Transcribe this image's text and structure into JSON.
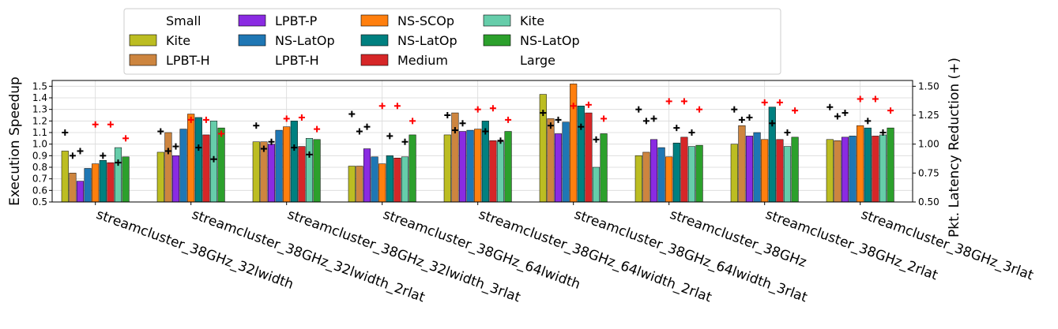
{
  "chart_data": {
    "type": "bar",
    "ylabel_left": "Execution Speedup",
    "ylabel_right": "Pkt. Latency Reduction (+)",
    "ylim_left": [
      0.5,
      1.55
    ],
    "yticks_left": [
      "0.5",
      "0.6",
      "0.7",
      "0.8",
      "0.9",
      "1.0",
      "1.1",
      "1.2",
      "1.3",
      "1.4",
      "1.5"
    ],
    "ylim_right": [
      0.5,
      1.55
    ],
    "yticks_right": [
      "0.50",
      "0.75",
      "1.00",
      "1.25",
      "1.50"
    ],
    "grid": true,
    "legend_placement": "top",
    "categories": [
      "streamcluster_38GHz_32lwidth",
      "streamcluster_38GHz_32lwidth_2rlat",
      "streamcluster_38GHz_32lwidth_3rlat",
      "streamcluster_38GHz_64lwidth",
      "streamcluster_38GHz_64lwidth_2rlat",
      "streamcluster_38GHz_64lwidth_3rlat",
      "streamcluster_38GHz",
      "streamcluster_38GHz_2rlat",
      "streamcluster_38GHz_3rlat"
    ],
    "legend": [
      {
        "label": "Small",
        "color": null
      },
      {
        "label": "Kite",
        "color": "#bcbd22"
      },
      {
        "label": "LPBT-H",
        "color": "#cd853f"
      },
      {
        "label": "LPBT-P",
        "color": "#8a2be2"
      },
      {
        "label": "NS-LatOp",
        "color": "#1f77b4"
      },
      {
        "label": "LPBT-H",
        "color": null
      },
      {
        "label": "NS-SCOp",
        "color": "#ff7f0e"
      },
      {
        "label": "NS-LatOp",
        "color": "#008080"
      },
      {
        "label": "Medium",
        "color": "#d62728"
      },
      {
        "label": "Kite",
        "color": "#66cdaa"
      },
      {
        "label": "NS-LatOp",
        "color": "#2ca02c"
      },
      {
        "label": "Large",
        "color": null
      }
    ],
    "series": [
      {
        "name": "Kite",
        "group": "Small",
        "color": "#bcbd22",
        "values": [
          0.94,
          0.93,
          1.02,
          0.81,
          1.08,
          1.43,
          0.9,
          1.0,
          1.04
        ],
        "latency_reduction": [
          1.1,
          1.11,
          1.16,
          1.26,
          1.25,
          1.27,
          1.3,
          1.3,
          1.32
        ]
      },
      {
        "name": "LPBT-H",
        "group": "Small",
        "color": "#cd853f",
        "values": [
          0.75,
          1.1,
          1.02,
          0.81,
          1.27,
          1.22,
          0.93,
          1.16,
          1.03
        ],
        "latency_reduction": [
          0.9,
          0.94,
          0.96,
          1.11,
          1.12,
          1.16,
          1.2,
          1.21,
          1.24
        ]
      },
      {
        "name": "LPBT-P",
        "group": "Small",
        "color": "#8a2be2",
        "values": [
          0.68,
          0.9,
          1.0,
          0.96,
          1.11,
          1.09,
          1.04,
          1.07,
          1.06
        ],
        "latency_reduction": [
          0.94,
          0.98,
          1.02,
          1.15,
          1.18,
          1.21,
          1.22,
          1.23,
          1.27
        ]
      },
      {
        "name": "NS-LatOp",
        "group": "Small",
        "color": "#1f77b4",
        "values": [
          0.79,
          1.13,
          1.12,
          0.89,
          1.12,
          1.19,
          0.97,
          1.1,
          1.07
        ],
        "latency_reduction": [
          null,
          null,
          null,
          null,
          null,
          null,
          null,
          null,
          null
        ]
      },
      {
        "name": "NS-SCOp",
        "group": "Small",
        "color": "#ff7f0e",
        "values": [
          0.83,
          1.26,
          1.15,
          0.83,
          1.13,
          1.52,
          0.89,
          1.04,
          1.16
        ],
        "latency_reduction": [
          1.17,
          1.21,
          1.22,
          1.33,
          1.3,
          1.33,
          1.37,
          1.36,
          1.39
        ]
      },
      {
        "name": "NS-LatOp",
        "group": "Medium",
        "color": "#008080",
        "values": [
          0.86,
          1.23,
          1.2,
          0.9,
          1.2,
          1.33,
          1.01,
          1.32,
          1.14
        ],
        "latency_reduction": [
          0.9,
          0.97,
          0.97,
          1.07,
          1.11,
          1.15,
          1.14,
          1.18,
          1.2
        ]
      },
      {
        "name": "Medium",
        "group": "Medium",
        "color": "#d62728",
        "values": [
          0.84,
          1.08,
          0.98,
          0.88,
          1.03,
          1.27,
          1.06,
          1.04,
          1.07
        ],
        "latency_reduction": [
          1.17,
          1.21,
          1.23,
          1.33,
          1.31,
          1.34,
          1.37,
          1.36,
          1.39
        ]
      },
      {
        "name": "Kite",
        "group": "Medium",
        "color": "#66cdaa",
        "values": [
          0.97,
          1.2,
          1.05,
          0.89,
          1.02,
          0.8,
          0.98,
          0.98,
          1.08
        ],
        "latency_reduction": [
          0.84,
          0.87,
          0.91,
          1.02,
          1.03,
          1.04,
          1.1,
          1.1,
          1.1
        ]
      },
      {
        "name": "NS-LatOp",
        "group": "Large",
        "color": "#2ca02c",
        "values": [
          0.89,
          1.14,
          1.04,
          1.08,
          1.11,
          1.09,
          0.99,
          1.06,
          1.14
        ],
        "latency_reduction": [
          1.05,
          1.09,
          1.13,
          1.2,
          1.21,
          1.22,
          1.3,
          1.29,
          1.29
        ]
      }
    ],
    "marker_colors": {
      "latency_plus": "#000000",
      "latency_plus_alt": "#ff0000"
    }
  }
}
